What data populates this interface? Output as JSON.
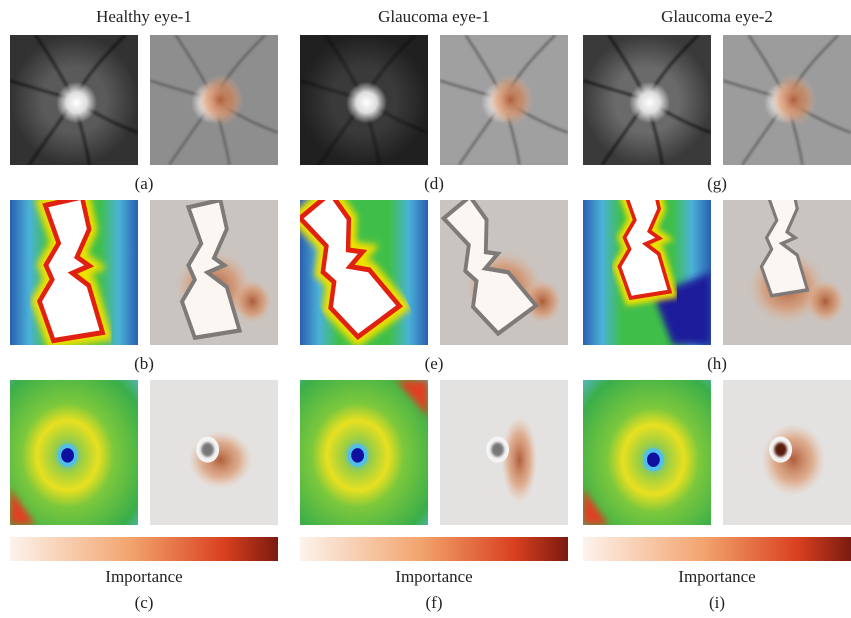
{
  "columns": [
    {
      "title": "Healthy eye-1",
      "labels": [
        "(a)",
        "(b)"
      ],
      "colorbar_label": "Importance",
      "bottom_label": "(c)"
    },
    {
      "title": "Glaucoma eye-1",
      "labels": [
        "(d)",
        "(e)"
      ],
      "colorbar_label": "Importance",
      "bottom_label": "(f)"
    },
    {
      "title": "Glaucoma eye-2",
      "labels": [
        "(g)",
        "(h)"
      ],
      "colorbar_label": "Importance",
      "bottom_label": "(i)"
    }
  ]
}
